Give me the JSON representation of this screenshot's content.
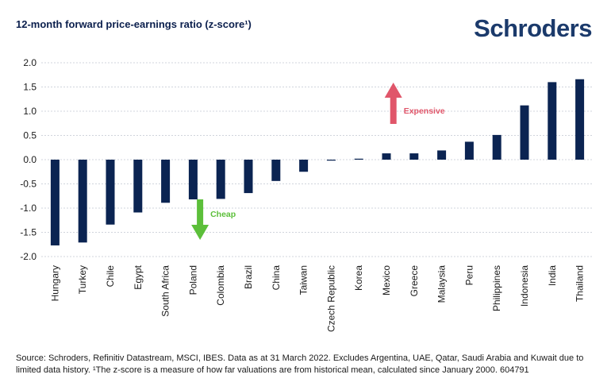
{
  "header": {
    "title": "12-month forward price-earnings ratio (z-score¹)",
    "logo": "Schroders"
  },
  "colors": {
    "bar": "#0b2452",
    "cheap": "#5cbf3a",
    "expensive": "#e0566a"
  },
  "chart_data": {
    "type": "bar",
    "title": "12-month forward price-earnings ratio (z-score¹)",
    "xlabel": "",
    "ylabel": "",
    "ylim": [
      -2.0,
      2.0
    ],
    "yticks": [
      "2.0",
      "1.5",
      "1.0",
      "0.5",
      "0.0",
      "-0.5",
      "-1.0",
      "-1.5",
      "-2.0"
    ],
    "grid": true,
    "categories": [
      "Hungary",
      "Turkey",
      "Chile",
      "Egypt",
      "South Africa",
      "Poland",
      "Colombia",
      "Brazil",
      "China",
      "Taiwan",
      "Czech Republic",
      "Korea",
      "Mexico",
      "Greece",
      "Malaysia",
      "Peru",
      "Philippines",
      "Indonesia",
      "India",
      "Thailand"
    ],
    "values": [
      -1.77,
      -1.71,
      -1.34,
      -1.09,
      -0.89,
      -0.82,
      -0.81,
      -0.69,
      -0.44,
      -0.25,
      -0.02,
      0.02,
      0.13,
      0.13,
      0.19,
      0.37,
      0.51,
      1.12,
      1.6,
      1.66
    ],
    "annotations": [
      {
        "label": "Cheap",
        "direction": "down",
        "value": -1.5
      },
      {
        "label": "Expensive",
        "direction": "up",
        "value": 1.0
      }
    ]
  },
  "footer": {
    "source": "Source: Schroders, Refinitiv Datastream, MSCI, IBES. Data as at 31 March 2022. Excludes Argentina, UAE, Qatar, Saudi Arabia and Kuwait due to limited data history. ¹The z-score is a measure of how far valuations are from historical mean, calculated since January 2000. 604791"
  }
}
